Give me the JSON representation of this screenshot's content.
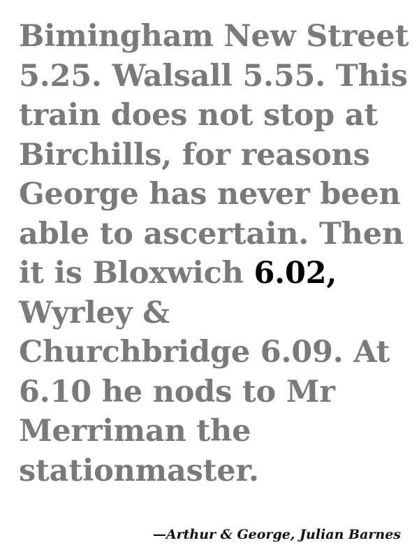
{
  "quote": {
    "lines": [
      "Bimingham New Street",
      "5.25. Walsall 5.55. This",
      "train does not stop at",
      "Birchills, for reasons",
      "George has never been",
      "able to ascertain. Then",
      {
        "before": "it is Bloxwich ",
        "highlight": "6.02,"
      },
      "Wyrley &",
      "Churchbridge 6.09. At",
      "6.10 he nods to Mr",
      "Merriman the",
      "stationmaster."
    ]
  },
  "attribution": "—Arthur & George, Julian Barnes",
  "colors": {
    "text": "#7a7a7a",
    "highlight": "#000000",
    "background": "#ffffff"
  }
}
